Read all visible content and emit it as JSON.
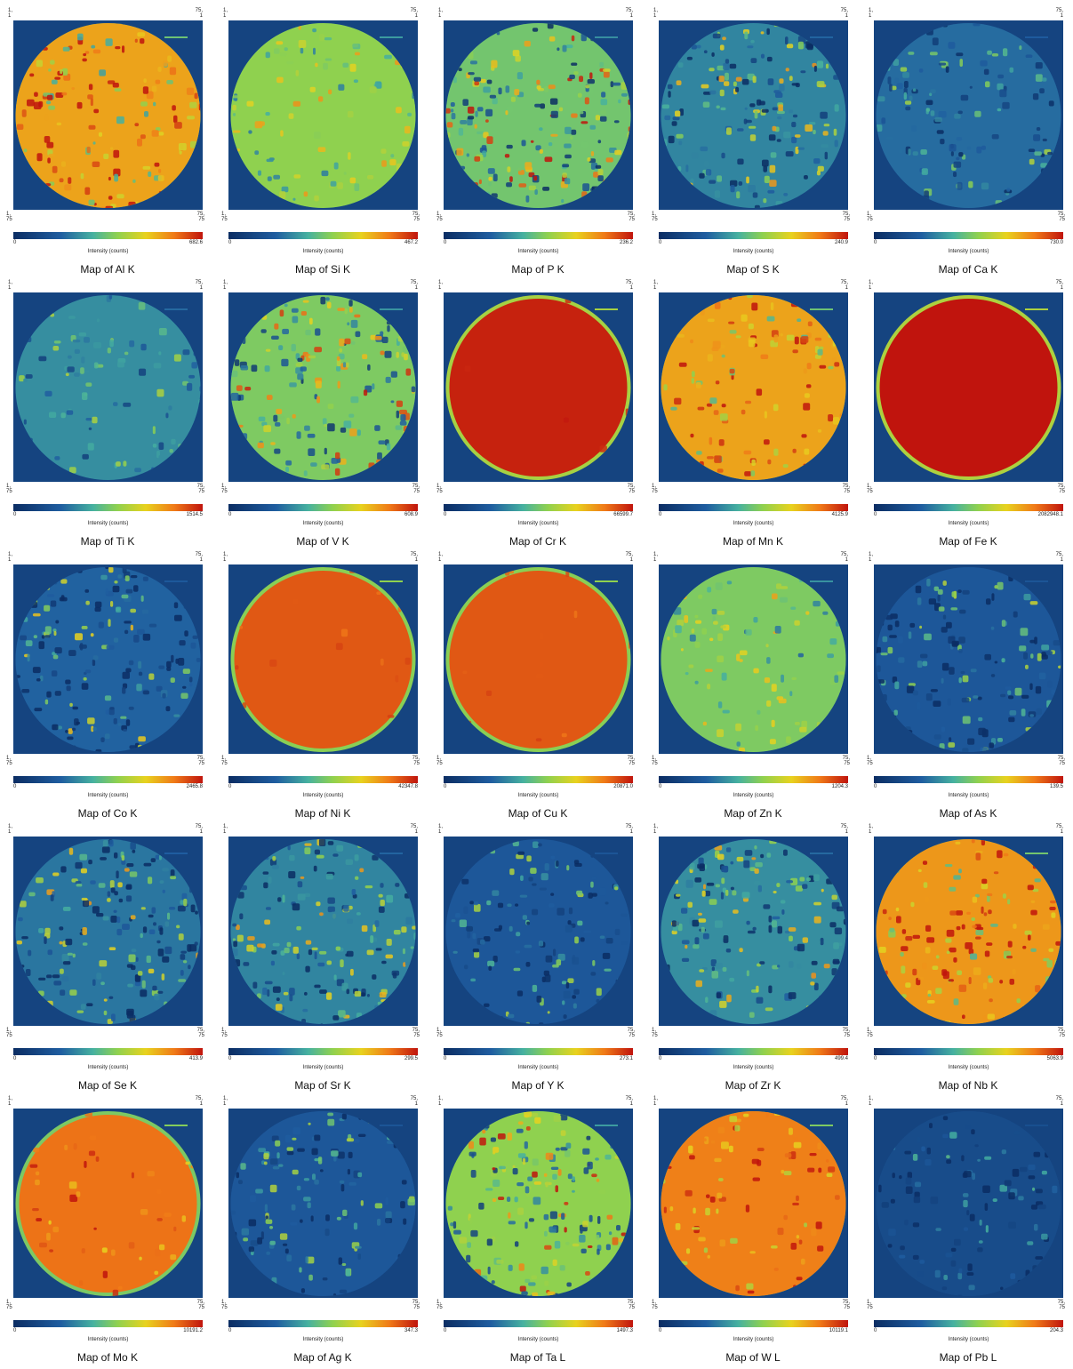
{
  "corners": {
    "top_left": "1,\n1",
    "top_right": "75,\n1",
    "bottom_left": "1,\n75",
    "bottom_right": "75,\n75"
  },
  "colorbar": {
    "label": "Intensity (counts)",
    "min": "0"
  },
  "chart_data": [
    {
      "type": "heatmap",
      "title": "Map of Al K",
      "max_label": "682.6",
      "vmax": 682.6,
      "fill_level": 0.78,
      "texture": 0.18
    },
    {
      "type": "heatmap",
      "title": "Map of Si K",
      "max_label": "467.2",
      "vmax": 467.2,
      "fill_level": 0.55,
      "texture": 0.12
    },
    {
      "type": "heatmap",
      "title": "Map of P K",
      "max_label": "236.2",
      "vmax": 236.2,
      "fill_level": 0.5,
      "texture": 0.25
    },
    {
      "type": "heatmap",
      "title": "Map of S K",
      "max_label": "240.9",
      "vmax": 240.9,
      "fill_level": 0.33,
      "texture": 0.22
    },
    {
      "type": "heatmap",
      "title": "Map of Ca K",
      "max_label": "730.0",
      "vmax": 730.0,
      "fill_level": 0.28,
      "texture": 0.15
    },
    {
      "type": "heatmap",
      "title": "Map of Ti K",
      "max_label": "1514.5",
      "vmax": 1514.5,
      "fill_level": 0.35,
      "texture": 0.12
    },
    {
      "type": "heatmap",
      "title": "Map of V K",
      "max_label": "608.9",
      "vmax": 608.9,
      "fill_level": 0.52,
      "texture": 0.22
    },
    {
      "type": "heatmap",
      "title": "Map of Cr K",
      "max_label": "66599.7",
      "vmax": 66599.7,
      "fill_level": 0.98,
      "texture": 0.01
    },
    {
      "type": "heatmap",
      "title": "Map of Mn K",
      "max_label": "4125.9",
      "vmax": 4125.9,
      "fill_level": 0.78,
      "texture": 0.16
    },
    {
      "type": "heatmap",
      "title": "Map of Fe K",
      "max_label": "2082948.1",
      "vmax": 2082948.1,
      "fill_level": 1.0,
      "texture": 0.0
    },
    {
      "type": "heatmap",
      "title": "Map of Co K",
      "max_label": "2465.8",
      "vmax": 2465.8,
      "fill_level": 0.26,
      "texture": 0.22
    },
    {
      "type": "heatmap",
      "title": "Map of Ni K",
      "max_label": "42347.8",
      "vmax": 42347.8,
      "fill_level": 0.9,
      "texture": 0.02
    },
    {
      "type": "heatmap",
      "title": "Map of Cu K",
      "max_label": "20871.0",
      "vmax": 20871.0,
      "fill_level": 0.9,
      "texture": 0.02
    },
    {
      "type": "heatmap",
      "title": "Map of Zn K",
      "max_label": "1204.3",
      "vmax": 1204.3,
      "fill_level": 0.52,
      "texture": 0.12
    },
    {
      "type": "heatmap",
      "title": "Map of As K",
      "max_label": "139.5",
      "vmax": 139.5,
      "fill_level": 0.22,
      "texture": 0.2
    },
    {
      "type": "heatmap",
      "title": "Map of Se K",
      "max_label": "413.9",
      "vmax": 413.9,
      "fill_level": 0.3,
      "texture": 0.24
    },
    {
      "type": "heatmap",
      "title": "Map of Sr K",
      "max_label": "299.5",
      "vmax": 299.5,
      "fill_level": 0.33,
      "texture": 0.22
    },
    {
      "type": "heatmap",
      "title": "Map of Y K",
      "max_label": "273.1",
      "vmax": 273.1,
      "fill_level": 0.22,
      "texture": 0.18
    },
    {
      "type": "heatmap",
      "title": "Map of Zr K",
      "max_label": "499.4",
      "vmax": 499.4,
      "fill_level": 0.35,
      "texture": 0.22
    },
    {
      "type": "heatmap",
      "title": "Map of Nb K",
      "max_label": "5063.9",
      "vmax": 5063.9,
      "fill_level": 0.8,
      "texture": 0.18
    },
    {
      "type": "heatmap",
      "title": "Map of Mo K",
      "max_label": "10191.2",
      "vmax": 10191.2,
      "fill_level": 0.86,
      "texture": 0.08
    },
    {
      "type": "heatmap",
      "title": "Map of Ag K",
      "max_label": "347.3",
      "vmax": 347.3,
      "fill_level": 0.22,
      "texture": 0.18
    },
    {
      "type": "heatmap",
      "title": "Map of Ta L",
      "max_label": "1497.3",
      "vmax": 1497.3,
      "fill_level": 0.55,
      "texture": 0.22
    },
    {
      "type": "heatmap",
      "title": "Map of W L",
      "max_label": "10119.1",
      "vmax": 10119.1,
      "fill_level": 0.84,
      "texture": 0.12
    },
    {
      "type": "heatmap",
      "title": "Map of Pb L",
      "max_label": "204.3",
      "vmax": 204.3,
      "fill_level": 0.16,
      "texture": 0.14
    }
  ]
}
